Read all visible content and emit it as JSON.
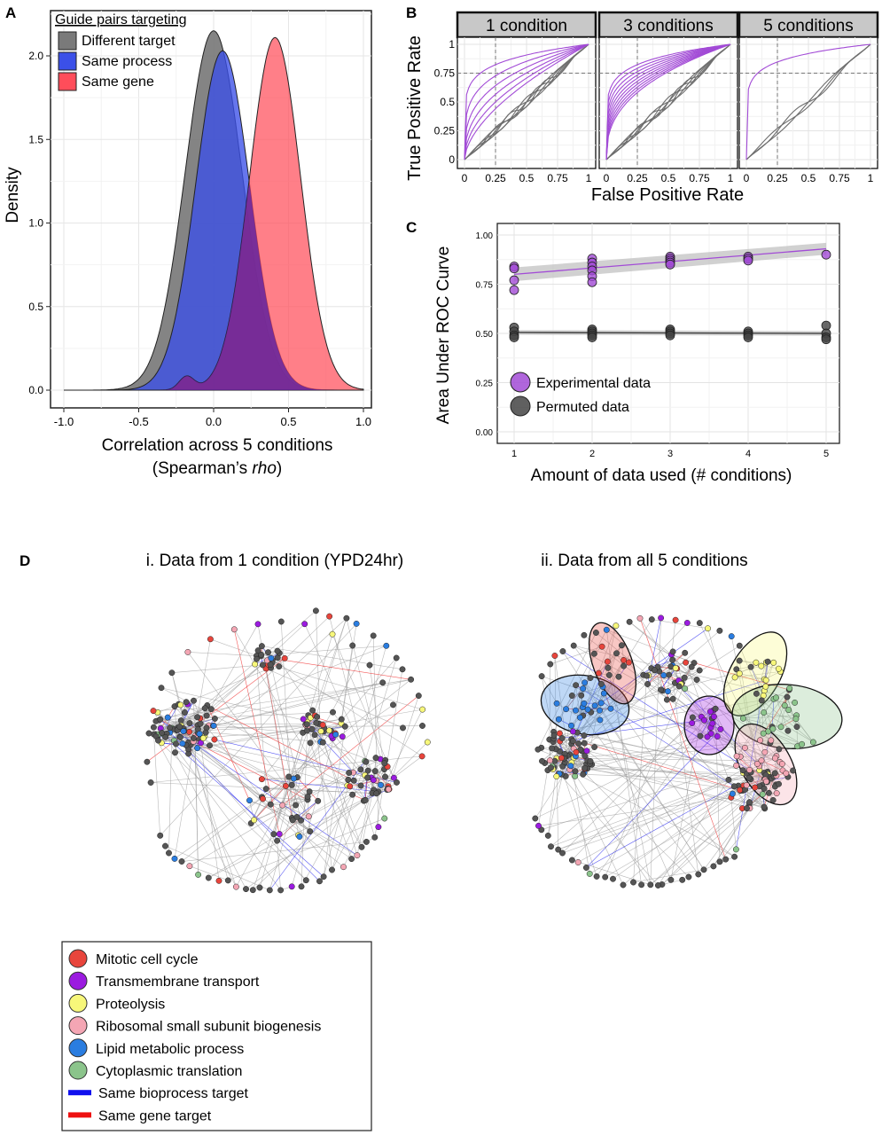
{
  "colors": {
    "different_target": "#7a7a7a",
    "same_process": "#3b50e8",
    "same_gene": "#ff4d5a",
    "overlap": "#5a20a0",
    "experimental": "#a24bd6",
    "permuted": "#444444",
    "mitotic": "#e8453c",
    "transmembrane": "#9b1be0",
    "proteolysis": "#f7f77a",
    "ribosomal": "#f4a6b4",
    "lipid": "#2a7de0",
    "cytoplasmic": "#8bc48b",
    "edge_process": "#1010ee",
    "edge_gene": "#ee1010",
    "node": "#555555"
  },
  "panel_labels": {
    "a": "A",
    "b": "B",
    "c": "C",
    "d": "D"
  },
  "chart_data": [
    {
      "id": "A",
      "type": "area",
      "xlabel_line1": "Correlation across 5 conditions",
      "xlabel_line2_prefix": "(Spearman’s ",
      "xlabel_line2_italic": "rho",
      "xlabel_line2_suffix": ")",
      "ylabel": "Density",
      "xlim": [
        -1.0,
        1.0
      ],
      "ylim": [
        0,
        2.25
      ],
      "x_ticks": [
        "-1.0",
        "-0.5",
        "0.0",
        "0.5",
        "1.0"
      ],
      "y_ticks": [
        "0.0",
        "0.5",
        "1.0",
        "1.5",
        "2.0"
      ],
      "legend_title": "Guide pairs targeting",
      "series": [
        {
          "name": "Different target",
          "color_key": "different_target",
          "peak_x": 0.0,
          "peak_y": 2.15,
          "sd": 0.19
        },
        {
          "name": "Same process",
          "color_key": "same_process",
          "peak_x": 0.06,
          "peak_y": 2.03,
          "sd": 0.18
        },
        {
          "name": "Same gene",
          "color_key": "same_gene",
          "peak_x": 0.41,
          "peak_y": 2.11,
          "sd": 0.17
        }
      ]
    },
    {
      "id": "B",
      "type": "line",
      "xlabel": "False Positive Rate",
      "ylabel": "True Positive Rate",
      "x_ticks": [
        "0",
        "0.25",
        "0.5",
        "0.75",
        "1"
      ],
      "y_ticks": [
        "0",
        "0.25",
        "0.5",
        "0.75",
        "1"
      ],
      "reference_lines": {
        "x": 0.25,
        "y": 0.75
      },
      "facets": [
        {
          "label": "1 condition",
          "curves": 6
        },
        {
          "label": "3 conditions",
          "curves": 10
        },
        {
          "label": "5 conditions",
          "curves": 1
        }
      ]
    },
    {
      "id": "C",
      "type": "scatter",
      "xlabel": "Amount of data used (# conditions)",
      "ylabel": "Area Under ROC Curve",
      "xlim": [
        0.8,
        5.2
      ],
      "ylim": [
        0,
        1.05
      ],
      "x_ticks": [
        "1",
        "2",
        "3",
        "4",
        "5"
      ],
      "y_ticks": [
        "0.00",
        "0.25",
        "0.50",
        "0.75",
        "1.00"
      ],
      "series": [
        {
          "name": "Experimental data",
          "color_key": "experimental",
          "points": [
            [
              1,
              0.84
            ],
            [
              1,
              0.83
            ],
            [
              1,
              0.77
            ],
            [
              1,
              0.72
            ],
            [
              2,
              0.88
            ],
            [
              2,
              0.86
            ],
            [
              2,
              0.84
            ],
            [
              2,
              0.82
            ],
            [
              2,
              0.79
            ],
            [
              2,
              0.76
            ],
            [
              3,
              0.89
            ],
            [
              3,
              0.88
            ],
            [
              3,
              0.87
            ],
            [
              3,
              0.86
            ],
            [
              3,
              0.85
            ],
            [
              4,
              0.89
            ],
            [
              4,
              0.88
            ],
            [
              4,
              0.87
            ],
            [
              5,
              0.9
            ]
          ],
          "fit": [
            [
              1,
              0.8
            ],
            [
              5,
              0.93
            ]
          ]
        },
        {
          "name": "Permuted data",
          "color_key": "permuted",
          "points": [
            [
              1,
              0.53
            ],
            [
              1,
              0.51
            ],
            [
              1,
              0.49
            ],
            [
              1,
              0.48
            ],
            [
              2,
              0.52
            ],
            [
              2,
              0.51
            ],
            [
              2,
              0.5
            ],
            [
              2,
              0.49
            ],
            [
              2,
              0.48
            ],
            [
              3,
              0.52
            ],
            [
              3,
              0.51
            ],
            [
              3,
              0.5
            ],
            [
              3,
              0.49
            ],
            [
              4,
              0.51
            ],
            [
              4,
              0.5
            ],
            [
              4,
              0.49
            ],
            [
              4,
              0.48
            ],
            [
              5,
              0.54
            ],
            [
              5,
              0.5
            ],
            [
              5,
              0.48
            ],
            [
              5,
              0.47
            ]
          ],
          "fit": [
            [
              1,
              0.505
            ],
            [
              5,
              0.5
            ]
          ]
        }
      ]
    }
  ],
  "network": {
    "title_i": "i. Data from 1 condition (YPD24hr)",
    "title_ii": "ii. Data from all 5 conditions"
  },
  "legend_d": {
    "items": [
      {
        "label": "Mitotic cell cycle",
        "color_key": "mitotic",
        "kind": "circle"
      },
      {
        "label": "Transmembrane transport",
        "color_key": "transmembrane",
        "kind": "circle"
      },
      {
        "label": "Proteolysis",
        "color_key": "proteolysis",
        "kind": "circle"
      },
      {
        "label": "Ribosomal small subunit biogenesis",
        "color_key": "ribosomal",
        "kind": "circle"
      },
      {
        "label": "Lipid metabolic process",
        "color_key": "lipid",
        "kind": "circle"
      },
      {
        "label": "Cytoplasmic translation",
        "color_key": "cytoplasmic",
        "kind": "circle"
      },
      {
        "label": "Same bioprocess target",
        "color_key": "edge_process",
        "kind": "bar"
      },
      {
        "label": "Same gene target",
        "color_key": "edge_gene",
        "kind": "bar"
      }
    ]
  }
}
